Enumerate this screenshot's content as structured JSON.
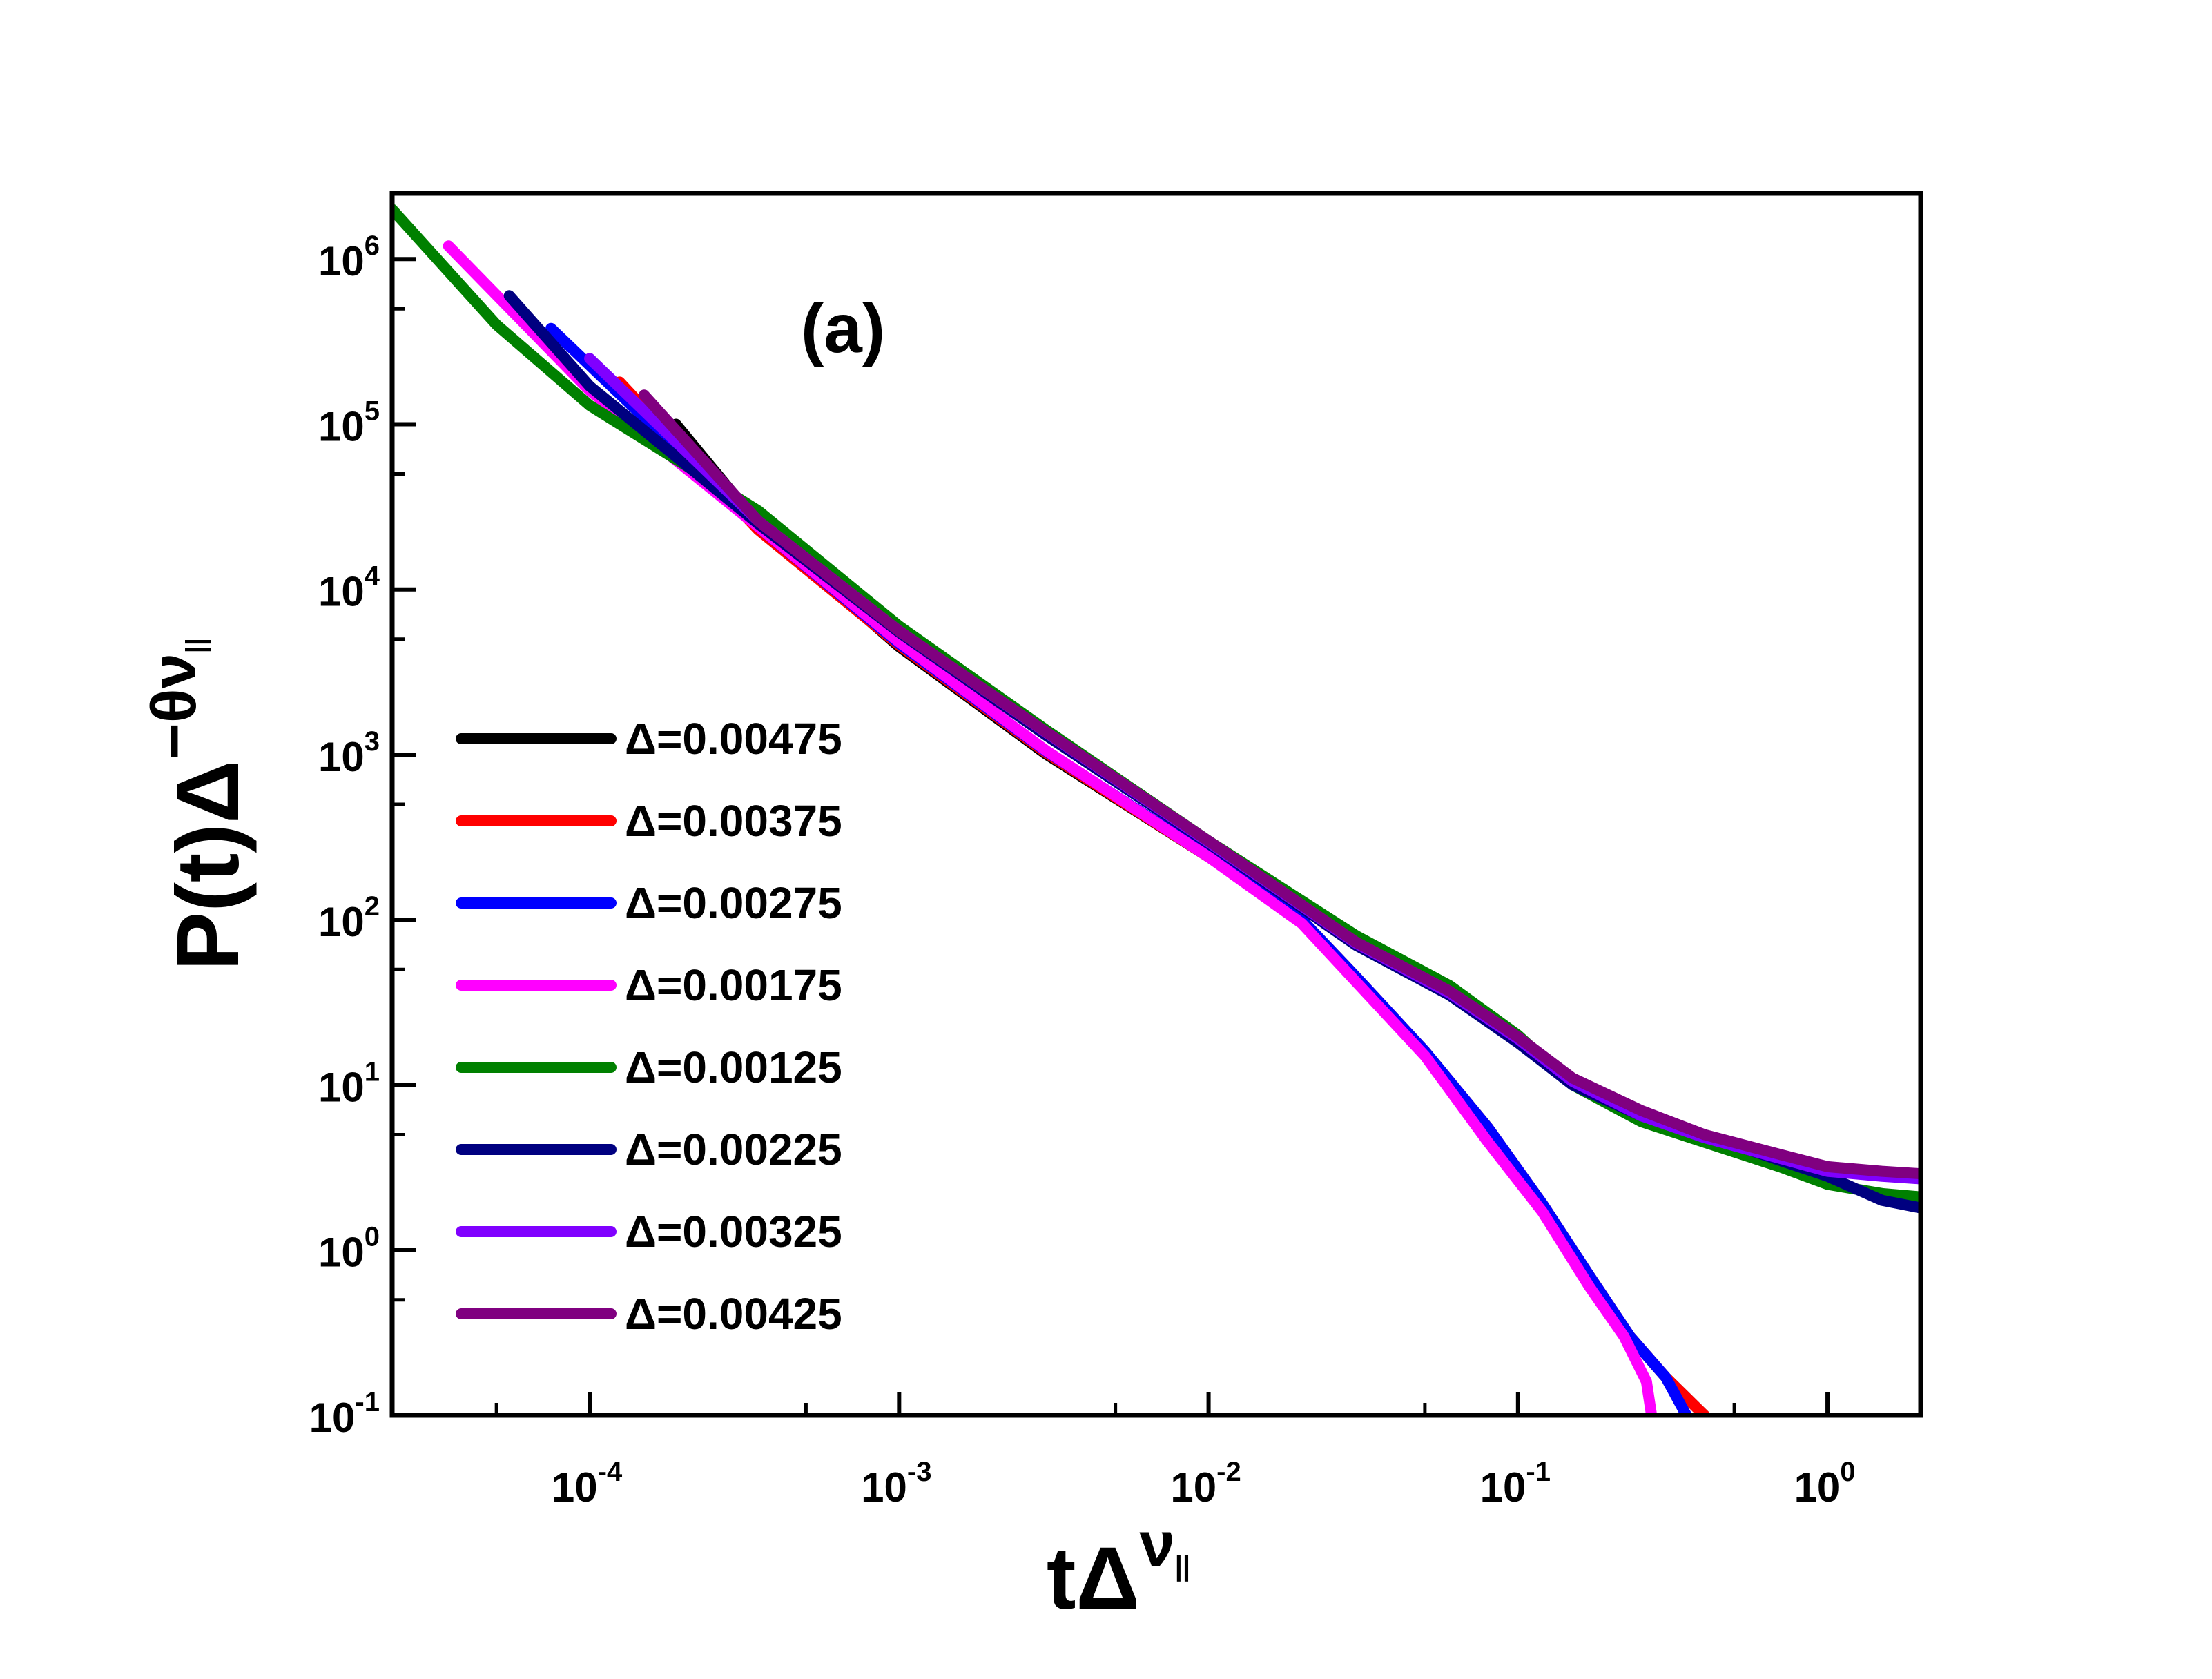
{
  "chart_data": {
    "type": "line",
    "panel_label": "(a)",
    "xlabel": {
      "base": "tΔ",
      "sup": "ν",
      "subsup": "||"
    },
    "ylabel": {
      "base": "P(t)Δ",
      "sup": "−θν",
      "subsup": "||"
    },
    "xscale": "log",
    "yscale": "log",
    "xlim": [
      2.3e-05,
      2.0
    ],
    "ylim": [
      0.1,
      2500000.0
    ],
    "x_ticks": [
      {
        "base": "10",
        "exp": "-4",
        "value": 0.0001
      },
      {
        "base": "10",
        "exp": "-3",
        "value": 0.001
      },
      {
        "base": "10",
        "exp": "-2",
        "value": 0.01
      },
      {
        "base": "10",
        "exp": "-1",
        "value": 0.1
      },
      {
        "base": "10",
        "exp": "0",
        "value": 1
      }
    ],
    "y_ticks": [
      {
        "base": "10",
        "exp": "-1",
        "value": 0.1
      },
      {
        "base": "10",
        "exp": "0",
        "value": 1
      },
      {
        "base": "10",
        "exp": "1",
        "value": 10
      },
      {
        "base": "10",
        "exp": "2",
        "value": 100
      },
      {
        "base": "10",
        "exp": "3",
        "value": 1000
      },
      {
        "base": "10",
        "exp": "4",
        "value": 10000
      },
      {
        "base": "10",
        "exp": "5",
        "value": 100000
      },
      {
        "base": "10",
        "exp": "6",
        "value": 1000000
      }
    ],
    "legend_position": "left-middle",
    "series": [
      {
        "name": "Δ=0.00475",
        "color": "#000000",
        "points": [
          [
            0.00019,
            100000
          ],
          [
            0.00035,
            25000
          ],
          [
            0.001,
            4500
          ],
          [
            0.003,
            1000
          ],
          [
            0.01,
            240
          ],
          [
            0.02,
            100
          ],
          [
            0.03,
            45
          ],
          [
            0.05,
            16
          ],
          [
            0.08,
            5.5
          ],
          [
            0.12,
            1.9
          ],
          [
            0.17,
            0.7
          ],
          [
            0.23,
            0.3
          ],
          [
            0.3,
            0.17
          ],
          [
            0.4,
            0.1
          ]
        ]
      },
      {
        "name": "Δ=0.00375",
        "color": "#ff0000",
        "points": [
          [
            0.000125,
            180000
          ],
          [
            0.00035,
            23000
          ],
          [
            0.001,
            4600
          ],
          [
            0.003,
            1020
          ],
          [
            0.01,
            240
          ],
          [
            0.02,
            100
          ],
          [
            0.03,
            45
          ],
          [
            0.05,
            16
          ],
          [
            0.08,
            5.5
          ],
          [
            0.12,
            1.9
          ],
          [
            0.17,
            0.7
          ],
          [
            0.23,
            0.3
          ],
          [
            0.3,
            0.17
          ],
          [
            0.4,
            0.1
          ]
        ]
      },
      {
        "name": "Δ=0.00275",
        "color": "#0000ff",
        "points": [
          [
            7.5e-05,
            380000
          ],
          [
            0.00015,
            110000
          ],
          [
            0.00035,
            24000
          ],
          [
            0.001,
            4700
          ],
          [
            0.003,
            1040
          ],
          [
            0.01,
            245
          ],
          [
            0.02,
            100
          ],
          [
            0.03,
            45
          ],
          [
            0.05,
            16
          ],
          [
            0.08,
            5.5
          ],
          [
            0.12,
            1.9
          ],
          [
            0.17,
            0.7
          ],
          [
            0.23,
            0.3
          ],
          [
            0.3,
            0.17
          ],
          [
            0.35,
            0.1
          ]
        ]
      },
      {
        "name": "Δ=0.00175",
        "color": "#ff00ff",
        "points": [
          [
            3.5e-05,
            1200000
          ],
          [
            0.0001,
            160000
          ],
          [
            0.00035,
            24000
          ],
          [
            0.001,
            4800
          ],
          [
            0.003,
            1050
          ],
          [
            0.01,
            240
          ],
          [
            0.02,
            95
          ],
          [
            0.03,
            42
          ],
          [
            0.05,
            15
          ],
          [
            0.08,
            4.5
          ],
          [
            0.12,
            1.7
          ],
          [
            0.17,
            0.6
          ],
          [
            0.22,
            0.3
          ],
          [
            0.26,
            0.16
          ],
          [
            0.27,
            0.1
          ]
        ]
      },
      {
        "name": "Δ=0.00125",
        "color": "#008000",
        "points": [
          [
            2.3e-05,
            2000000
          ],
          [
            5e-05,
            400000
          ],
          [
            0.0001,
            130000
          ],
          [
            0.00035,
            30000
          ],
          [
            0.001,
            6000
          ],
          [
            0.003,
            1400
          ],
          [
            0.01,
            300
          ],
          [
            0.03,
            80
          ],
          [
            0.06,
            40
          ],
          [
            0.1,
            20
          ],
          [
            0.15,
            10
          ],
          [
            0.25,
            6
          ],
          [
            0.4,
            4.5
          ],
          [
            0.7,
            3.2
          ],
          [
            1,
            2.5
          ],
          [
            1.5,
            2.2
          ],
          [
            2,
            2.1
          ]
        ]
      },
      {
        "name": "Δ=0.00225",
        "color": "#000080",
        "points": [
          [
            5.5e-05,
            600000
          ],
          [
            0.0001,
            170000
          ],
          [
            0.00035,
            25000
          ],
          [
            0.001,
            5500
          ],
          [
            0.003,
            1300
          ],
          [
            0.01,
            290
          ],
          [
            0.03,
            70
          ],
          [
            0.06,
            35
          ],
          [
            0.1,
            18
          ],
          [
            0.15,
            10
          ],
          [
            0.25,
            6.5
          ],
          [
            0.4,
            5
          ],
          [
            0.7,
            3.5
          ],
          [
            1,
            2.8
          ],
          [
            1.5,
            2
          ],
          [
            2,
            1.8
          ]
        ]
      },
      {
        "name": "Δ=0.00325",
        "color": "#8000ff",
        "points": [
          [
            0.0001,
            250000
          ],
          [
            0.00035,
            26000
          ],
          [
            0.001,
            5600
          ],
          [
            0.003,
            1350
          ],
          [
            0.01,
            295
          ],
          [
            0.03,
            72
          ],
          [
            0.06,
            36
          ],
          [
            0.1,
            19
          ],
          [
            0.15,
            10.5
          ],
          [
            0.25,
            6.5
          ],
          [
            0.4,
            4.8
          ],
          [
            0.7,
            3.6
          ],
          [
            1,
            3.0
          ],
          [
            1.5,
            2.8
          ],
          [
            2,
            2.7
          ]
        ]
      },
      {
        "name": "Δ=0.00425",
        "color": "#800080",
        "points": [
          [
            0.00015,
            150000
          ],
          [
            0.00035,
            26000
          ],
          [
            0.001,
            5600
          ],
          [
            0.003,
            1360
          ],
          [
            0.01,
            300
          ],
          [
            0.03,
            73
          ],
          [
            0.06,
            37
          ],
          [
            0.1,
            19.5
          ],
          [
            0.15,
            11
          ],
          [
            0.25,
            7
          ],
          [
            0.4,
            5
          ],
          [
            0.7,
            3.8
          ],
          [
            1,
            3.2
          ],
          [
            1.5,
            3.0
          ],
          [
            2,
            2.9
          ]
        ]
      }
    ]
  }
}
